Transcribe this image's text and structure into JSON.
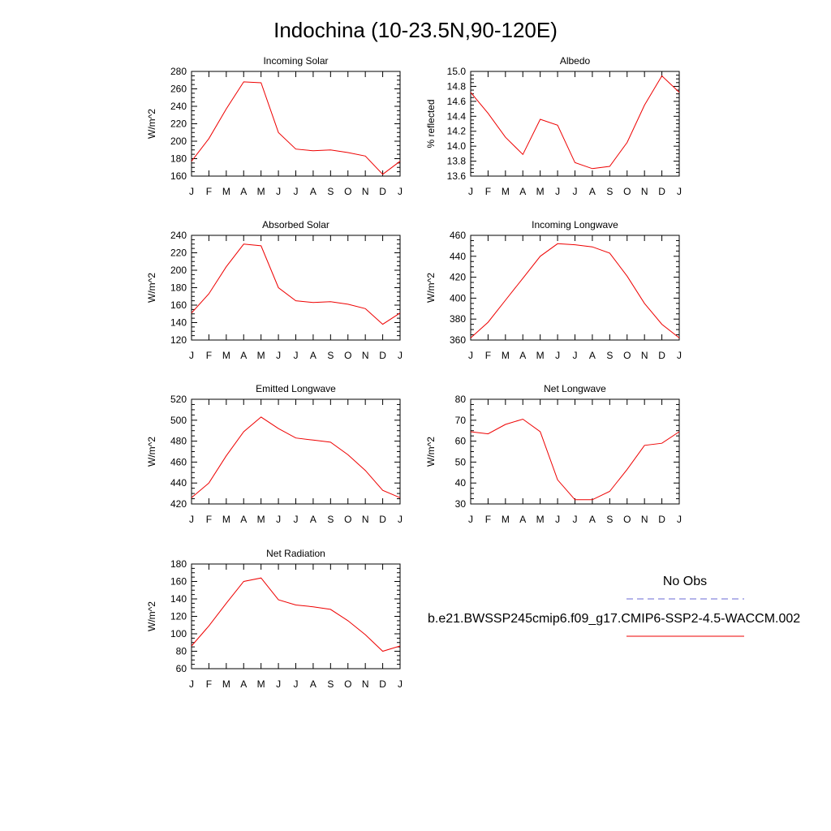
{
  "figure": {
    "title": "Indochina (10-23.5N,90-120E)",
    "legend": {
      "obs_label": "No Obs",
      "obs_color": "#6a6ad6",
      "model_label": "b.e21.BWSSP245cmip6.f09_g17.CMIP6-SSP2-4.5-WACCM.002",
      "model_color": "#ee0000"
    }
  },
  "chart_data": [
    {
      "type": "line",
      "title": "Incoming Solar",
      "ylabel": "W/m^2",
      "categories": [
        "J",
        "F",
        "M",
        "A",
        "M",
        "J",
        "J",
        "A",
        "S",
        "O",
        "N",
        "D",
        "J"
      ],
      "ylim": [
        160,
        280
      ],
      "yticks": [
        "160",
        "180",
        "200",
        "220",
        "240",
        "260",
        "280"
      ],
      "series": [
        {
          "color": "#ee0000",
          "values": [
            177,
            203,
            237,
            268,
            267,
            210,
            191,
            189,
            190,
            187,
            183,
            162,
            177
          ]
        }
      ]
    },
    {
      "type": "line",
      "title": "Albedo",
      "ylabel": "% reflected",
      "categories": [
        "J",
        "F",
        "M",
        "A",
        "M",
        "J",
        "J",
        "A",
        "S",
        "O",
        "N",
        "D",
        "J"
      ],
      "ylim": [
        13.6,
        15.0
      ],
      "yticks": [
        "13.6",
        "13.8",
        "14.0",
        "14.2",
        "14.4",
        "14.6",
        "14.8",
        "15.0"
      ],
      "series": [
        {
          "color": "#ee0000",
          "values": [
            14.72,
            14.44,
            14.12,
            13.89,
            14.36,
            14.28,
            13.78,
            13.7,
            13.73,
            14.05,
            14.55,
            14.94,
            14.72
          ]
        }
      ]
    },
    {
      "type": "line",
      "title": "Absorbed Solar",
      "ylabel": "W/m^2",
      "categories": [
        "J",
        "F",
        "M",
        "A",
        "M",
        "J",
        "J",
        "A",
        "S",
        "O",
        "N",
        "D",
        "J"
      ],
      "ylim": [
        120,
        240
      ],
      "yticks": [
        "120",
        "140",
        "160",
        "180",
        "200",
        "220",
        "240"
      ],
      "series": [
        {
          "color": "#ee0000",
          "values": [
            151,
            173,
            204,
            230,
            228,
            180,
            165,
            163,
            164,
            161,
            156,
            138,
            151
          ]
        }
      ]
    },
    {
      "type": "line",
      "title": "Incoming Longwave",
      "ylabel": "W/m^2",
      "categories": [
        "J",
        "F",
        "M",
        "A",
        "M",
        "J",
        "J",
        "A",
        "S",
        "O",
        "N",
        "D",
        "J"
      ],
      "ylim": [
        360,
        460
      ],
      "yticks": [
        "360",
        "380",
        "400",
        "420",
        "440",
        "460"
      ],
      "series": [
        {
          "color": "#ee0000",
          "values": [
            362,
            377,
            398,
            419,
            440,
            452,
            451,
            449,
            443,
            421,
            395,
            375,
            362
          ]
        }
      ]
    },
    {
      "type": "line",
      "title": "Emitted Longwave",
      "ylabel": "W/m^2",
      "categories": [
        "J",
        "F",
        "M",
        "A",
        "M",
        "J",
        "J",
        "A",
        "S",
        "O",
        "N",
        "D",
        "J"
      ],
      "ylim": [
        420,
        520
      ],
      "yticks": [
        "420",
        "440",
        "460",
        "480",
        "500",
        "520"
      ],
      "series": [
        {
          "color": "#ee0000",
          "values": [
            426,
            440,
            466,
            489,
            503,
            492,
            483,
            481,
            479,
            467,
            452,
            433,
            426
          ]
        }
      ]
    },
    {
      "type": "line",
      "title": "Net Longwave",
      "ylabel": "W/m^2",
      "categories": [
        "J",
        "F",
        "M",
        "A",
        "M",
        "J",
        "J",
        "A",
        "S",
        "O",
        "N",
        "D",
        "J"
      ],
      "ylim": [
        30,
        80
      ],
      "yticks": [
        "30",
        "40",
        "50",
        "60",
        "70",
        "80"
      ],
      "series": [
        {
          "color": "#ee0000",
          "values": [
            64.5,
            63.5,
            68,
            70.5,
            64.5,
            41.5,
            32,
            32,
            36,
            46.5,
            58,
            59,
            64.5
          ]
        }
      ]
    },
    {
      "type": "line",
      "title": "Net Radiation",
      "ylabel": "W/m^2",
      "categories": [
        "J",
        "F",
        "M",
        "A",
        "M",
        "J",
        "J",
        "A",
        "S",
        "O",
        "N",
        "D",
        "J"
      ],
      "ylim": [
        60,
        180
      ],
      "yticks": [
        "60",
        "80",
        "100",
        "120",
        "140",
        "160",
        "180"
      ],
      "series": [
        {
          "color": "#ee0000",
          "values": [
            86,
            109,
            135,
            160,
            164,
            139,
            133,
            131,
            128,
            115,
            99,
            80,
            86
          ]
        }
      ]
    }
  ]
}
